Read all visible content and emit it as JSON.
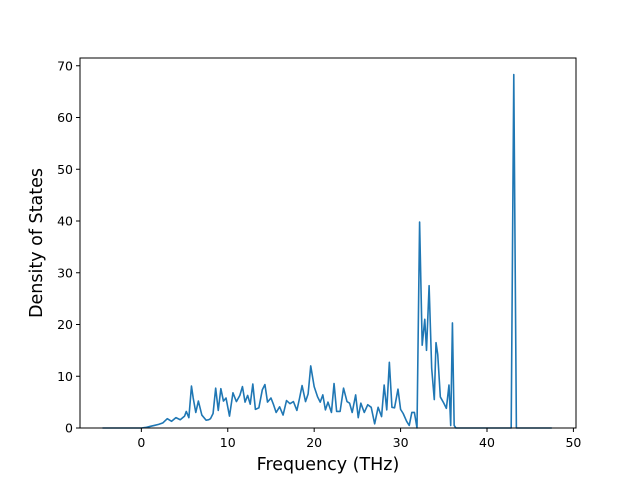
{
  "chart_data": {
    "type": "line",
    "title": "",
    "xlabel": "Frequency (THz)",
    "ylabel": "Density of States",
    "xlim": [
      -7.1,
      50.3
    ],
    "ylim": [
      0,
      71.5
    ],
    "x_ticks": [
      0,
      10,
      20,
      30,
      40,
      50
    ],
    "y_ticks": [
      0,
      10,
      20,
      30,
      40,
      50,
      60,
      70
    ],
    "grid": false,
    "legend": "none",
    "line_color": "#1f77b4",
    "series": [
      {
        "x": [
          -4.5,
          -3.0,
          -1.5,
          0.0,
          0.5,
          1.0,
          1.5,
          2.0,
          2.5,
          3.0,
          3.5,
          4.0,
          4.5,
          5.0,
          5.2,
          5.5,
          5.8,
          6.0,
          6.3,
          6.6,
          7.0,
          7.5,
          7.8,
          8.0,
          8.3,
          8.6,
          8.9,
          9.2,
          9.5,
          9.8,
          10.2,
          10.6,
          11.0,
          11.4,
          11.7,
          12.0,
          12.3,
          12.6,
          12.9,
          13.2,
          13.6,
          14.0,
          14.3,
          14.6,
          15.0,
          15.3,
          15.6,
          16.0,
          16.4,
          16.8,
          17.2,
          17.6,
          18.0,
          18.3,
          18.6,
          19.0,
          19.3,
          19.6,
          20.0,
          20.4,
          20.7,
          21.0,
          21.3,
          21.6,
          22.0,
          22.3,
          22.6,
          23.0,
          23.4,
          23.8,
          24.1,
          24.4,
          24.8,
          25.1,
          25.4,
          25.8,
          26.2,
          26.6,
          27.0,
          27.4,
          27.8,
          28.1,
          28.4,
          28.7,
          29.0,
          29.3,
          29.7,
          30.0,
          30.3,
          30.7,
          31.0,
          31.3,
          31.6,
          31.9,
          32.2,
          32.5,
          32.8,
          33.0,
          33.3,
          33.6,
          33.9,
          34.1,
          34.3,
          34.6,
          35.0,
          35.3,
          35.6,
          35.8,
          36.0,
          36.2,
          36.4,
          42.8,
          43.1,
          43.4,
          47.5
        ],
        "values": [
          0,
          0,
          0,
          0,
          0.1,
          0.3,
          0.5,
          0.7,
          1.0,
          1.8,
          1.3,
          2.0,
          1.6,
          2.3,
          3.2,
          2.0,
          8.1,
          5.8,
          3.0,
          5.2,
          2.5,
          1.5,
          1.6,
          1.8,
          2.8,
          7.7,
          3.4,
          7.6,
          5.2,
          5.8,
          2.3,
          6.8,
          5.1,
          6.3,
          8.0,
          5.0,
          6.3,
          4.6,
          8.5,
          3.6,
          3.9,
          7.4,
          8.4,
          5.0,
          5.8,
          4.5,
          3.0,
          4.1,
          2.5,
          5.3,
          4.7,
          5.1,
          3.4,
          5.7,
          8.2,
          5.1,
          6.6,
          12.0,
          8.0,
          6.0,
          5.0,
          6.4,
          3.5,
          5.0,
          3.0,
          8.6,
          3.2,
          3.2,
          7.7,
          5.1,
          4.8,
          3.0,
          6.4,
          2.0,
          4.8,
          3.0,
          4.5,
          4.0,
          0.8,
          4.0,
          2.2,
          8.3,
          3.5,
          12.7,
          4.0,
          3.9,
          7.5,
          3.6,
          2.8,
          1.3,
          0.5,
          3.0,
          3.0,
          0,
          39.8,
          16.0,
          21.0,
          15.0,
          27.5,
          11.5,
          5.5,
          16.5,
          14.2,
          6.0,
          4.8,
          3.8,
          8.3,
          0.5,
          20.3,
          0.5,
          0,
          0,
          68.3,
          0,
          0
        ]
      }
    ]
  }
}
